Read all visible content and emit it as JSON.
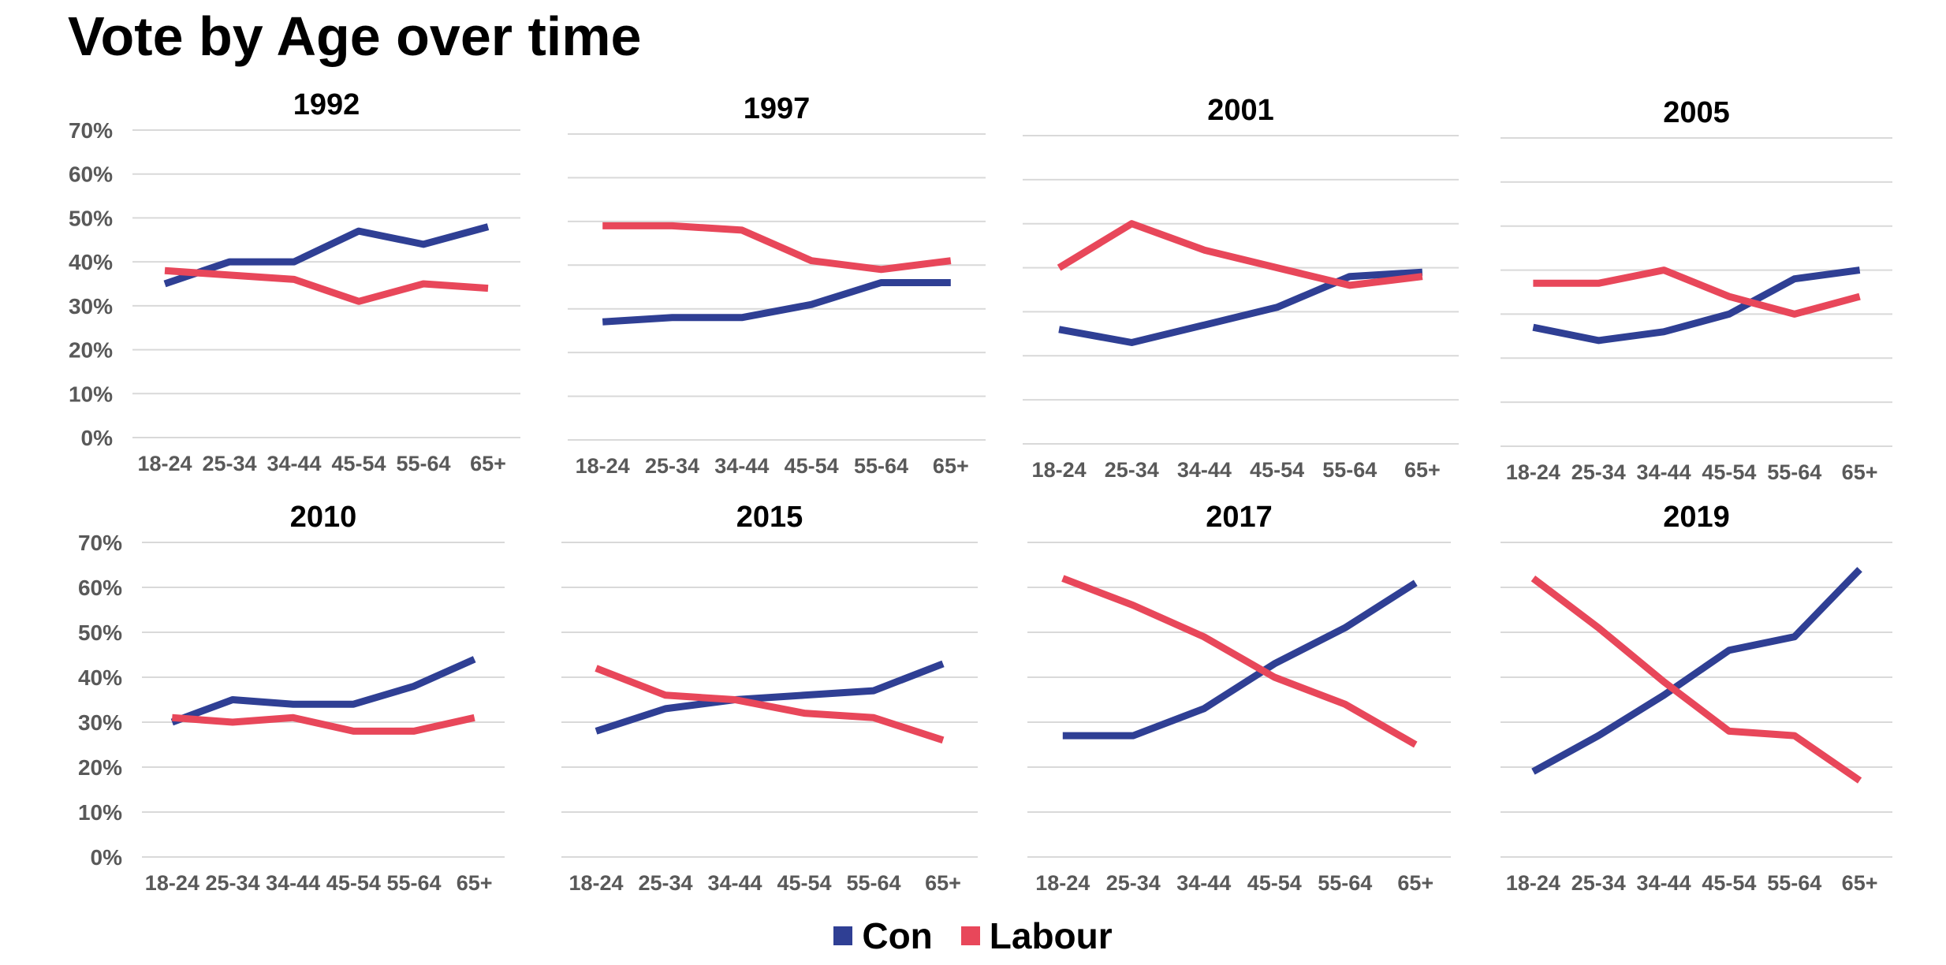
{
  "title": "Vote by Age over time",
  "colors": {
    "con": "#2f3f94",
    "labour": "#e8475a",
    "grid": "#d9d9d9",
    "tick": "#595959"
  },
  "legend": [
    {
      "name": "Con",
      "color": "#2f3f94"
    },
    {
      "name": "Labour",
      "color": "#e8475a"
    }
  ],
  "chart_data": [
    {
      "type": "line",
      "title": "1992",
      "categories": [
        "18-24",
        "25-34",
        "34-44",
        "45-54",
        "55-64",
        "65+"
      ],
      "ylim": [
        0,
        70
      ],
      "yticks": [
        "0%",
        "10%",
        "20%",
        "30%",
        "40%",
        "50%",
        "60%",
        "70%"
      ],
      "grid": true,
      "series": [
        {
          "name": "Con",
          "values": [
            35,
            40,
            40,
            47,
            44,
            48
          ]
        },
        {
          "name": "Labour",
          "values": [
            38,
            37,
            36,
            31,
            35,
            34
          ]
        }
      ]
    },
    {
      "type": "line",
      "title": "1997",
      "categories": [
        "18-24",
        "25-34",
        "34-44",
        "45-54",
        "55-64",
        "65+"
      ],
      "ylim": [
        0,
        70
      ],
      "yticks": [],
      "grid": true,
      "series": [
        {
          "name": "Con",
          "values": [
            27,
            28,
            28,
            31,
            36,
            36
          ]
        },
        {
          "name": "Labour",
          "values": [
            49,
            49,
            48,
            41,
            39,
            41
          ]
        }
      ]
    },
    {
      "type": "line",
      "title": "2001",
      "categories": [
        "18-24",
        "25-34",
        "34-44",
        "45-54",
        "55-64",
        "65+"
      ],
      "ylim": [
        0,
        70
      ],
      "yticks": [],
      "grid": true,
      "series": [
        {
          "name": "Con",
          "values": [
            26,
            23,
            27,
            31,
            38,
            39
          ]
        },
        {
          "name": "Labour",
          "values": [
            40,
            50,
            44,
            40,
            36,
            38
          ]
        }
      ]
    },
    {
      "type": "line",
      "title": "2005",
      "categories": [
        "18-24",
        "25-34",
        "34-44",
        "45-54",
        "55-64",
        "65+"
      ],
      "ylim": [
        0,
        70
      ],
      "yticks": [],
      "grid": true,
      "series": [
        {
          "name": "Con",
          "values": [
            27,
            24,
            26,
            30,
            38,
            40
          ]
        },
        {
          "name": "Labour",
          "values": [
            37,
            37,
            40,
            34,
            30,
            34
          ]
        }
      ]
    },
    {
      "type": "line",
      "title": "2010",
      "categories": [
        "18-24",
        "25-34",
        "34-44",
        "45-54",
        "55-64",
        "65+"
      ],
      "ylim": [
        0,
        70
      ],
      "yticks": [
        "0%",
        "10%",
        "20%",
        "30%",
        "40%",
        "50%",
        "60%",
        "70%"
      ],
      "grid": true,
      "series": [
        {
          "name": "Con",
          "values": [
            30,
            35,
            34,
            34,
            38,
            44
          ]
        },
        {
          "name": "Labour",
          "values": [
            31,
            30,
            31,
            28,
            28,
            31
          ]
        }
      ]
    },
    {
      "type": "line",
      "title": "2015",
      "categories": [
        "18-24",
        "25-34",
        "34-44",
        "45-54",
        "55-64",
        "65+"
      ],
      "ylim": [
        0,
        70
      ],
      "yticks": [],
      "grid": true,
      "series": [
        {
          "name": "Con",
          "values": [
            28,
            33,
            35,
            36,
            37,
            43
          ]
        },
        {
          "name": "Labour",
          "values": [
            42,
            36,
            35,
            32,
            31,
            26
          ]
        }
      ]
    },
    {
      "type": "line",
      "title": "2017",
      "categories": [
        "18-24",
        "25-34",
        "34-44",
        "45-54",
        "55-64",
        "65+"
      ],
      "ylim": [
        0,
        70
      ],
      "yticks": [],
      "grid": true,
      "series": [
        {
          "name": "Con",
          "values": [
            27,
            27,
            33,
            43,
            51,
            61
          ]
        },
        {
          "name": "Labour",
          "values": [
            62,
            56,
            49,
            40,
            34,
            25
          ]
        }
      ]
    },
    {
      "type": "line",
      "title": "2019",
      "categories": [
        "18-24",
        "25-34",
        "34-44",
        "45-54",
        "55-64",
        "65+"
      ],
      "ylim": [
        0,
        70
      ],
      "yticks": [],
      "grid": true,
      "series": [
        {
          "name": "Con",
          "values": [
            19,
            27,
            36,
            46,
            49,
            64
          ]
        },
        {
          "name": "Labour",
          "values": [
            62,
            51,
            39,
            28,
            27,
            17
          ]
        }
      ]
    }
  ]
}
